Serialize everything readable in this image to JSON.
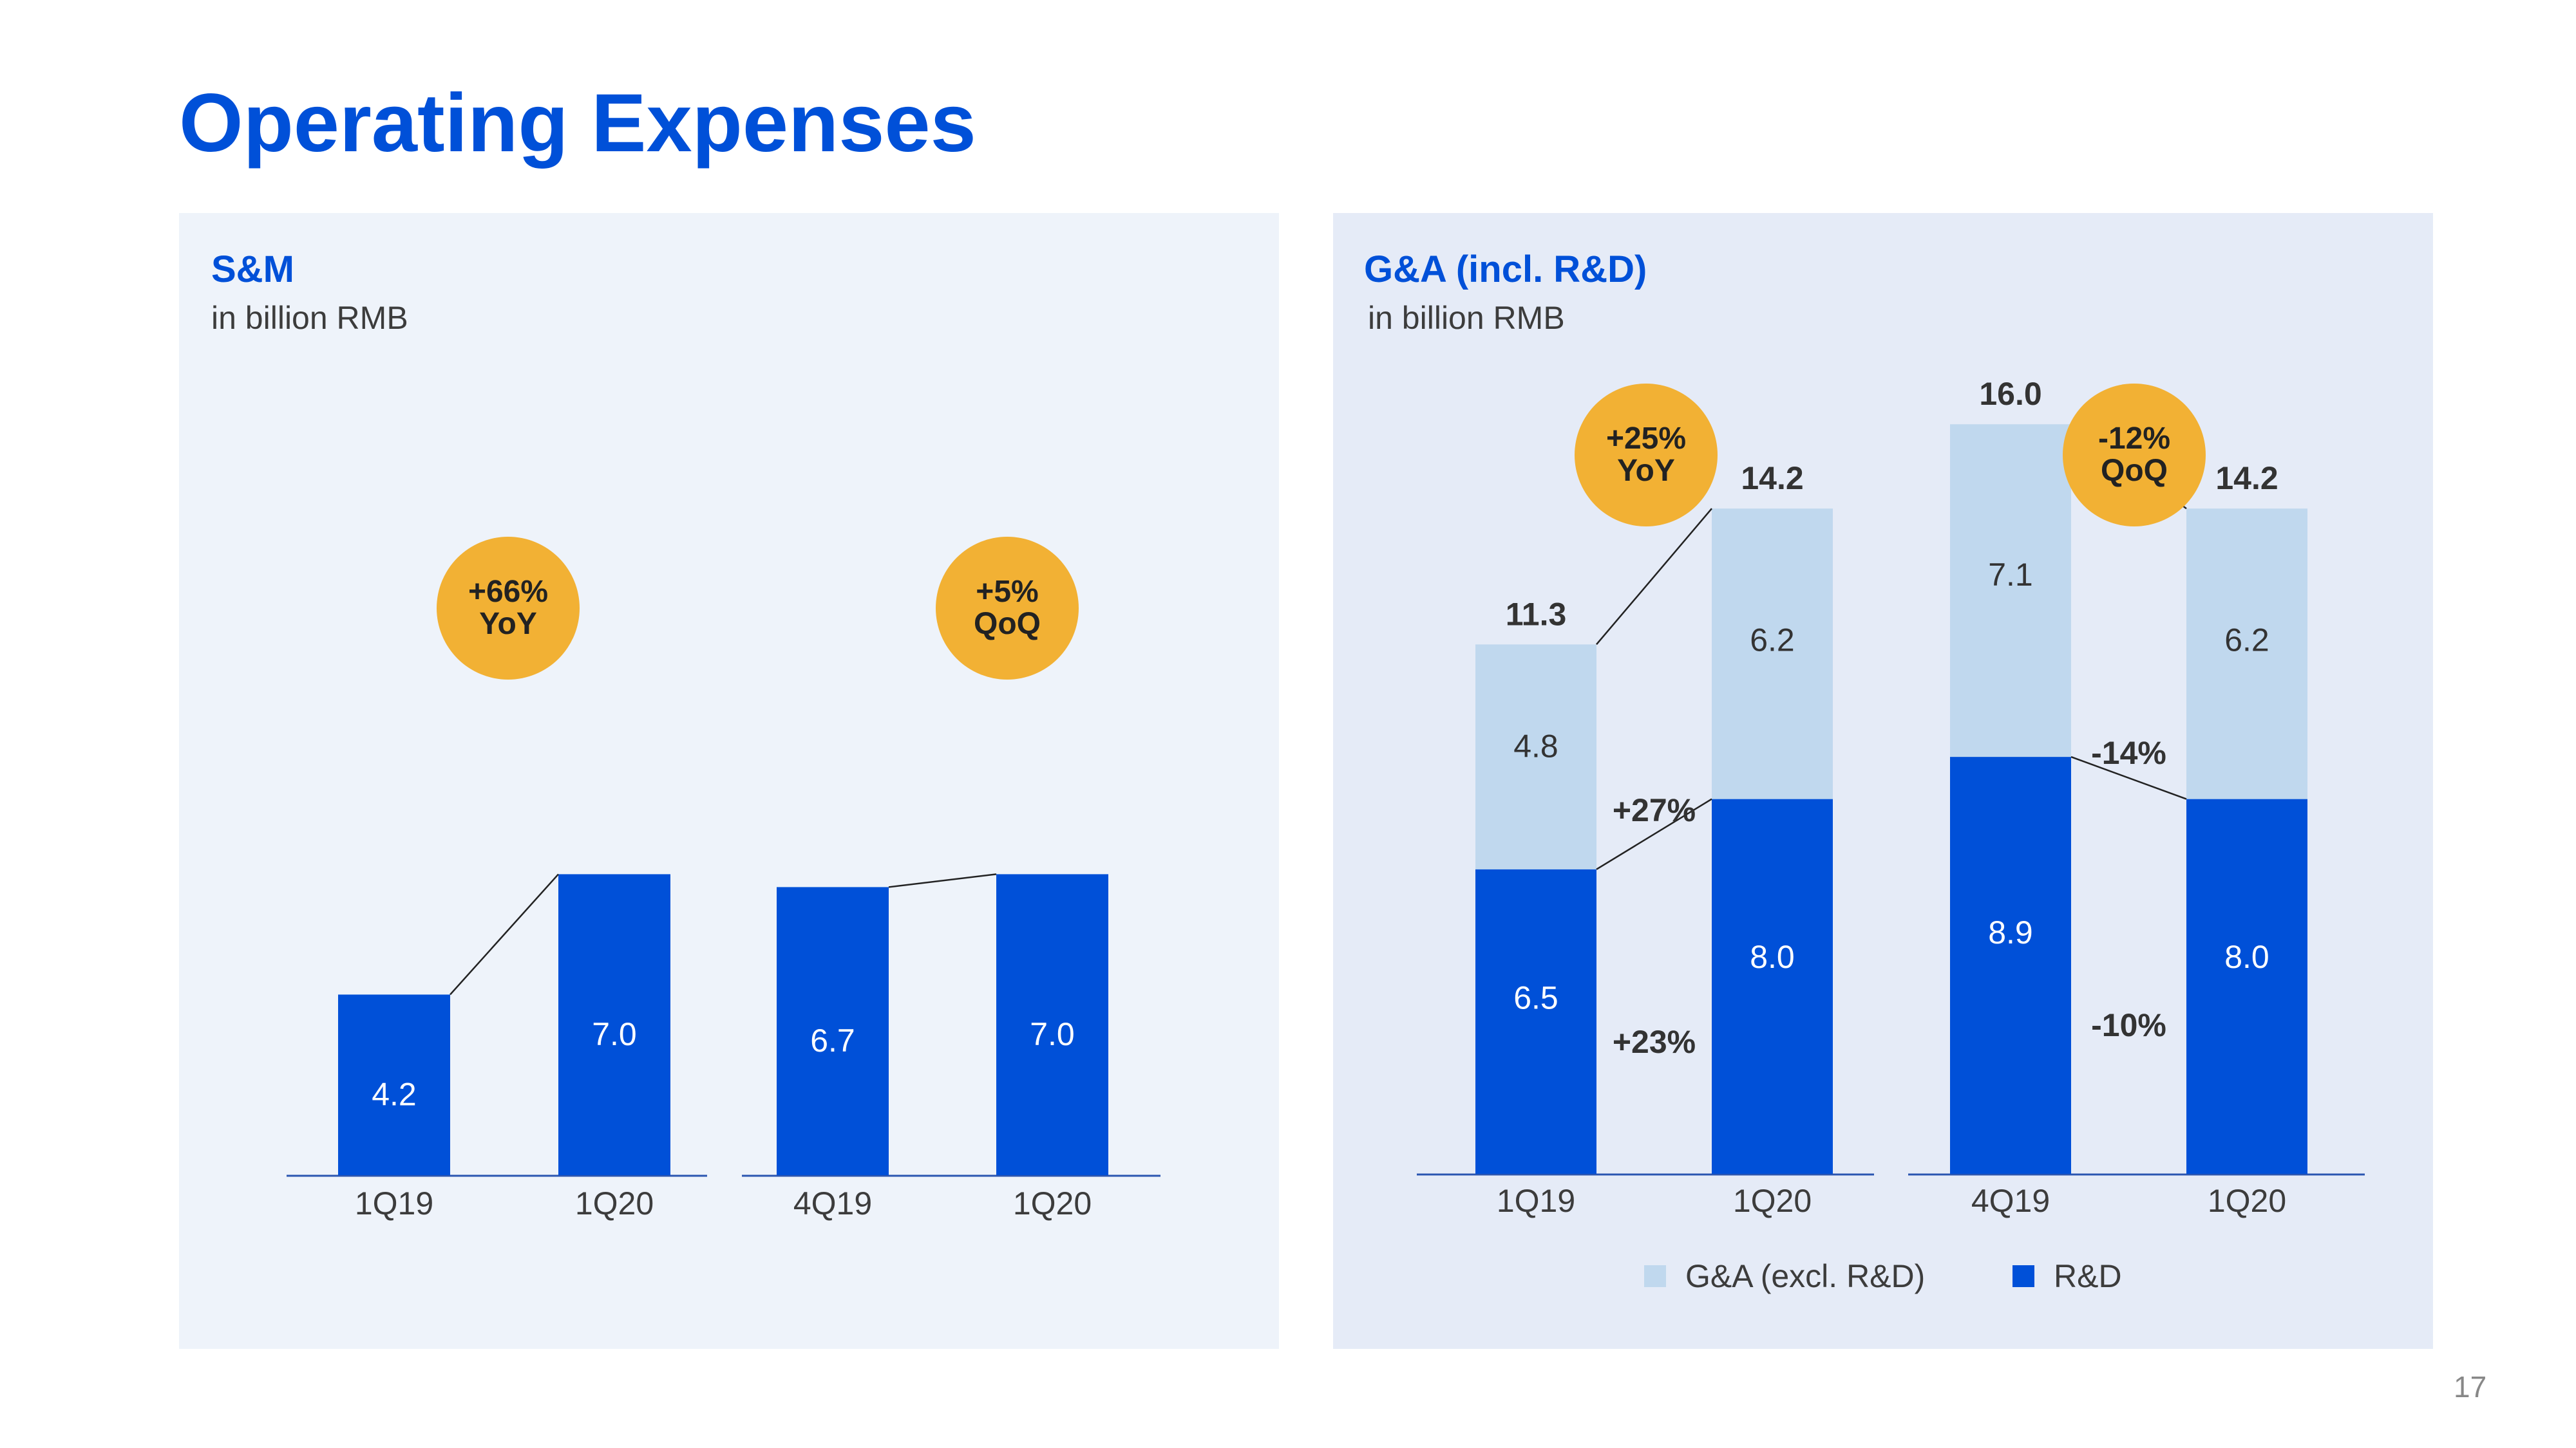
{
  "page_title": "Operating Expenses",
  "page_number": "17",
  "colors": {
    "dark_blue": "#0050d8",
    "light_blue": "#c0d8ee",
    "badge": "#f2b134",
    "title": "#0050d8"
  },
  "panels": {
    "sm": {
      "title": "S&M",
      "subtitle": "in billion RMB"
    },
    "ga": {
      "title": "G&A (incl. R&D)",
      "subtitle": "in billion RMB"
    }
  },
  "badges": {
    "sm_yoy": {
      "value": "+66%",
      "label": "YoY"
    },
    "sm_qoq": {
      "value": "+5%",
      "label": "QoQ"
    },
    "ga_yoy": {
      "value": "+25%",
      "label": "YoY"
    },
    "ga_qoq": {
      "value": "-12%",
      "label": "QoQ"
    }
  },
  "legend": {
    "ga_excl": "G&A (excl. R&D)",
    "rd": "R&D"
  },
  "chart_data": [
    {
      "type": "bar",
      "title": "S&M",
      "ylabel": "in billion RMB",
      "categories": [
        "1Q19",
        "1Q20"
      ],
      "values": [
        4.2,
        7.0
      ],
      "labels": [
        "4.2",
        "7.0"
      ]
    },
    {
      "type": "bar",
      "title": "S&M",
      "ylabel": "in billion RMB",
      "categories": [
        "4Q19",
        "1Q20"
      ],
      "values": [
        6.7,
        7.0
      ],
      "labels": [
        "6.7",
        "7.0"
      ]
    },
    {
      "type": "bar",
      "stacked": true,
      "title": "G&A (incl. R&D)",
      "ylabel": "in billion RMB",
      "categories": [
        "1Q19",
        "1Q20"
      ],
      "series": [
        {
          "name": "R&D",
          "values": [
            6.5,
            8.0
          ],
          "labels": [
            "6.5",
            "8.0"
          ]
        },
        {
          "name": "G&A (excl. R&D)",
          "values": [
            4.8,
            6.2
          ],
          "labels": [
            "4.8",
            "6.2"
          ]
        }
      ],
      "totals": [
        "11.3",
        "14.2"
      ],
      "changes": {
        "top": "+27%",
        "bottom": "+23%"
      }
    },
    {
      "type": "bar",
      "stacked": true,
      "title": "G&A (incl. R&D)",
      "ylabel": "in billion RMB",
      "categories": [
        "4Q19",
        "1Q20"
      ],
      "series": [
        {
          "name": "R&D",
          "values": [
            8.9,
            8.0
          ],
          "labels": [
            "8.9",
            "8.0"
          ]
        },
        {
          "name": "G&A (excl. R&D)",
          "values": [
            7.1,
            6.2
          ],
          "labels": [
            "7.1",
            "6.2"
          ]
        }
      ],
      "totals": [
        "16.0",
        "14.2"
      ],
      "changes": {
        "top": "-14%",
        "bottom": "-10%"
      }
    }
  ]
}
